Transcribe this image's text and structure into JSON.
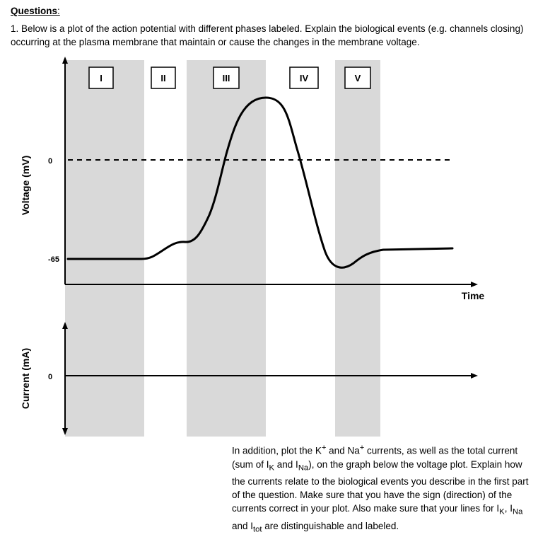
{
  "heading": {
    "title": "Questions",
    "colon": ":"
  },
  "question": {
    "text": "1. Below is a plot of the action potential with different phases labeled. Explain the biological events (e.g. channels closing) occurring at the plasma membrane that maintain or cause the changes in the membrane voltage."
  },
  "phases": [
    "I",
    "II",
    "III",
    "IV",
    "V"
  ],
  "voltage_plot": {
    "ylabel": "Voltage (mV)",
    "xlabel": "Time",
    "tick_zero": "0",
    "tick_rest": "-65"
  },
  "current_plot": {
    "ylabel": "Current (mA)",
    "tick_zero": "0"
  },
  "instructions": {
    "p1": "In addition, plot the K",
    "sup_plus1": "+",
    "p2": " and Na",
    "sup_plus2": "+",
    "p3": " currents, as well as the total current (sum of I",
    "sub_k": "K",
    "p4": " and I",
    "sub_na": "Na",
    "p5": "), on the graph below the voltage plot. Explain how the currents relate to the biological events you describe in the first part of the question. Make sure that you have the sign (direction) of the currents correct in your plot. Also make sure that your lines for I",
    "sub_k2": "K",
    "p6": ", I",
    "sub_na2": "Na",
    "p7": " and I",
    "sub_tot": "tot",
    "p8": " are distinguishable and labeled."
  },
  "chart_data": {
    "type": "line",
    "title": "",
    "xlabel": "Time",
    "ylabel": "Voltage (mV)",
    "yticks": [
      0,
      -65
    ],
    "reference_line": {
      "y": 0,
      "style": "dashed"
    },
    "series": [
      {
        "values": [
          -65,
          -65,
          -65,
          -65,
          -62,
          -57,
          -55,
          -40,
          -10,
          15,
          33,
          40,
          38,
          10,
          -25,
          -60,
          -70,
          -68,
          -64,
          -63,
          -62
        ]
      }
    ]
  }
}
